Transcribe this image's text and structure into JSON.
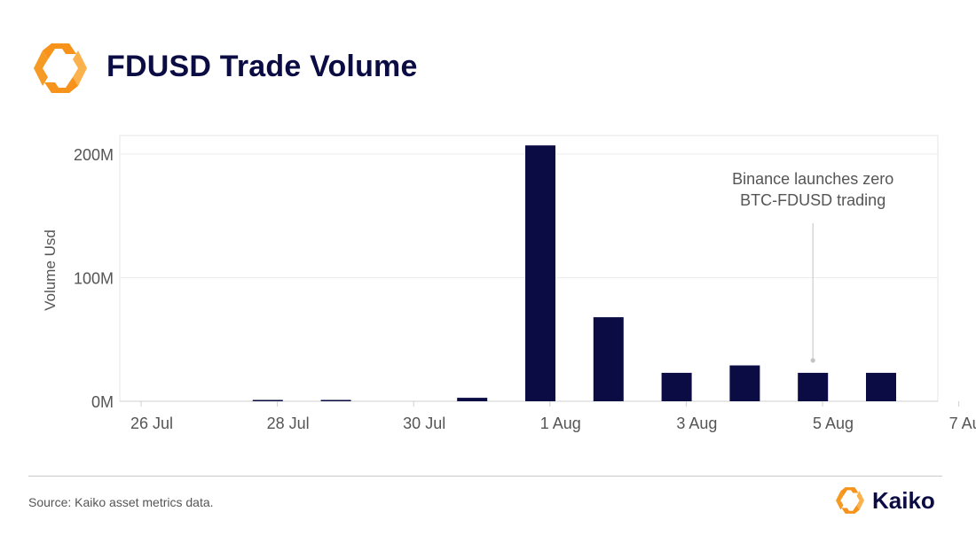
{
  "header": {
    "title": "FDUSD Trade Volume"
  },
  "footer": {
    "source": "Source: Kaiko asset metrics data.",
    "brand": "Kaiko"
  },
  "colors": {
    "bar": "#0b0c44",
    "accent": "#f7931a",
    "accent_light": "#fbb24c",
    "title": "#0b0c44"
  },
  "icons": {
    "logo": "kaiko-logo-icon",
    "brand_logo": "kaiko-logo-icon"
  },
  "chart_data": {
    "type": "bar",
    "ylabel": "Volume Usd",
    "xlabel": "",
    "categories": [
      "26 Jul",
      "27 Jul",
      "28 Jul",
      "29 Jul",
      "30 Jul",
      "31 Jul",
      "1 Aug",
      "2 Aug",
      "3 Aug",
      "4 Aug",
      "5 Aug",
      "6 Aug",
      "7 Aug"
    ],
    "x_tick_labels": [
      "26 Jul",
      "28 Jul",
      "30 Jul",
      "1 Aug",
      "3 Aug",
      "5 Aug",
      "7 Aug"
    ],
    "y_tick_labels": [
      "0M",
      "100M",
      "200M"
    ],
    "y_ticks": [
      0,
      100000000,
      200000000
    ],
    "ylim": [
      0,
      215000000
    ],
    "grid": true,
    "series": [
      {
        "values": [
          0,
          1000000,
          800000,
          0,
          2800000,
          207000000,
          68000000,
          23000000,
          29000000,
          23000000,
          23000000,
          0,
          null
        ]
      }
    ],
    "annotation": {
      "text_lines": [
        "Binance launches zero",
        "BTC-FDUSD trading"
      ],
      "category": "4 Aug"
    }
  }
}
